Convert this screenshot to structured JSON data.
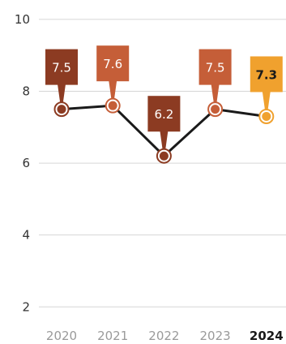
{
  "chart_data": {
    "type": "line",
    "title": "",
    "xlabel": "",
    "ylabel": "",
    "categories": [
      "2020",
      "2021",
      "2022",
      "2023",
      "2024"
    ],
    "highlight_category": "2024",
    "series": [
      {
        "values": [
          7.5,
          7.6,
          6.2,
          7.5,
          7.3
        ],
        "data_labels": [
          "7.5",
          "7.6",
          "6.2",
          "7.5",
          "7.3"
        ],
        "label_colors": [
          "#8c3b22",
          "#c55e38",
          "#8c3b22",
          "#c55e38",
          "#f0a12e"
        ],
        "label_text_colors": [
          "#ffffff",
          "#ffffff",
          "#ffffff",
          "#ffffff",
          "#1a1a1a"
        ],
        "line_color": "#1a1a1a"
      }
    ],
    "ylim": [
      1.6,
      10.2
    ],
    "yticks": [
      2,
      4,
      6,
      8,
      10
    ],
    "ytick_labels": [
      "2",
      "4",
      "6",
      "8",
      "10"
    ],
    "grid": true,
    "legend": "none"
  }
}
